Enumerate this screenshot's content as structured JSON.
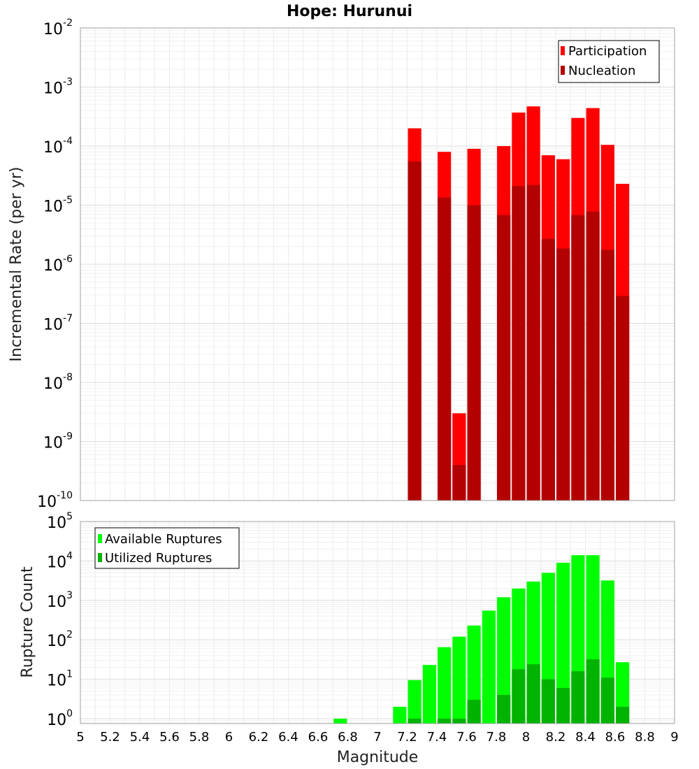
{
  "chart_data": [
    {
      "type": "bar",
      "title": "Hope: Hurunui",
      "xlabel": "",
      "ylabel": "Incremental Rate (per yr)",
      "yscale": "log",
      "ylim": [
        1e-10,
        0.01
      ],
      "xlim": [
        5,
        9
      ],
      "grid": true,
      "legend_position": "top-right",
      "overlay": true,
      "x": [
        7.25,
        7.45,
        7.55,
        7.65,
        7.85,
        7.95,
        8.05,
        8.15,
        8.25,
        8.35,
        8.45,
        8.55,
        8.65
      ],
      "series": [
        {
          "name": "Participation",
          "color": "#ff0000",
          "values": [
            0.0002,
            8e-05,
            3e-09,
            9e-05,
            0.0001,
            0.00037,
            0.00047,
            7e-05,
            6e-05,
            0.0003,
            0.00044,
            0.000105,
            2.3e-05
          ]
        },
        {
          "name": "Nucleation",
          "color": "#b30000",
          "values": [
            5.5e-05,
            1.35e-05,
            4e-10,
            1e-05,
            6.8e-06,
            2.1e-05,
            2.2e-05,
            2.7e-06,
            1.85e-06,
            6.8e-06,
            7.8e-06,
            1.75e-06,
            2.9e-07
          ]
        }
      ]
    },
    {
      "type": "bar",
      "title": "",
      "xlabel": "Magnitude",
      "ylabel": "Rupture Count",
      "yscale": "log",
      "ylim": [
        0.75,
        100000.0
      ],
      "xlim": [
        5,
        9
      ],
      "grid": true,
      "legend_position": "top-left",
      "overlay": true,
      "x": [
        6.75,
        7.15,
        7.25,
        7.35,
        7.45,
        7.55,
        7.65,
        7.75,
        7.85,
        7.95,
        8.05,
        8.15,
        8.25,
        8.35,
        8.45,
        8.55,
        8.65
      ],
      "series": [
        {
          "name": "Available Ruptures",
          "color": "#00ff00",
          "values": [
            1,
            2,
            9.5,
            23,
            65,
            120,
            230,
            550,
            1200,
            2000,
            3000,
            5000,
            9000,
            14000,
            14000,
            3200,
            27
          ]
        },
        {
          "name": "Utilized Ruptures",
          "color": "#00b300",
          "values": [
            0,
            0,
            1,
            0,
            1,
            1,
            3,
            0,
            4,
            18,
            24,
            10,
            6,
            16,
            32,
            11,
            2
          ]
        }
      ]
    }
  ],
  "axes": {
    "x_ticks": [
      "5",
      "5.2",
      "5.4",
      "5.6",
      "5.8",
      "6",
      "6.2",
      "6.4",
      "6.6",
      "6.8",
      "7",
      "7.2",
      "7.4",
      "7.6",
      "7.8",
      "8",
      "8.2",
      "8.4",
      "8.6",
      "8.8",
      "9"
    ],
    "top_y_ticks": [
      {
        "base": "10",
        "exp": "-2"
      },
      {
        "base": "10",
        "exp": "-3"
      },
      {
        "base": "10",
        "exp": "-4"
      },
      {
        "base": "10",
        "exp": "-5"
      },
      {
        "base": "10",
        "exp": "-6"
      },
      {
        "base": "10",
        "exp": "-7"
      },
      {
        "base": "10",
        "exp": "-8"
      },
      {
        "base": "10",
        "exp": "-9"
      },
      {
        "base": "10",
        "exp": "-10"
      }
    ],
    "bottom_y_ticks": [
      {
        "base": "10",
        "exp": "5"
      },
      {
        "base": "10",
        "exp": "4"
      },
      {
        "base": "10",
        "exp": "3"
      },
      {
        "base": "10",
        "exp": "2"
      },
      {
        "base": "10",
        "exp": "1"
      },
      {
        "base": "10",
        "exp": "0"
      }
    ]
  }
}
